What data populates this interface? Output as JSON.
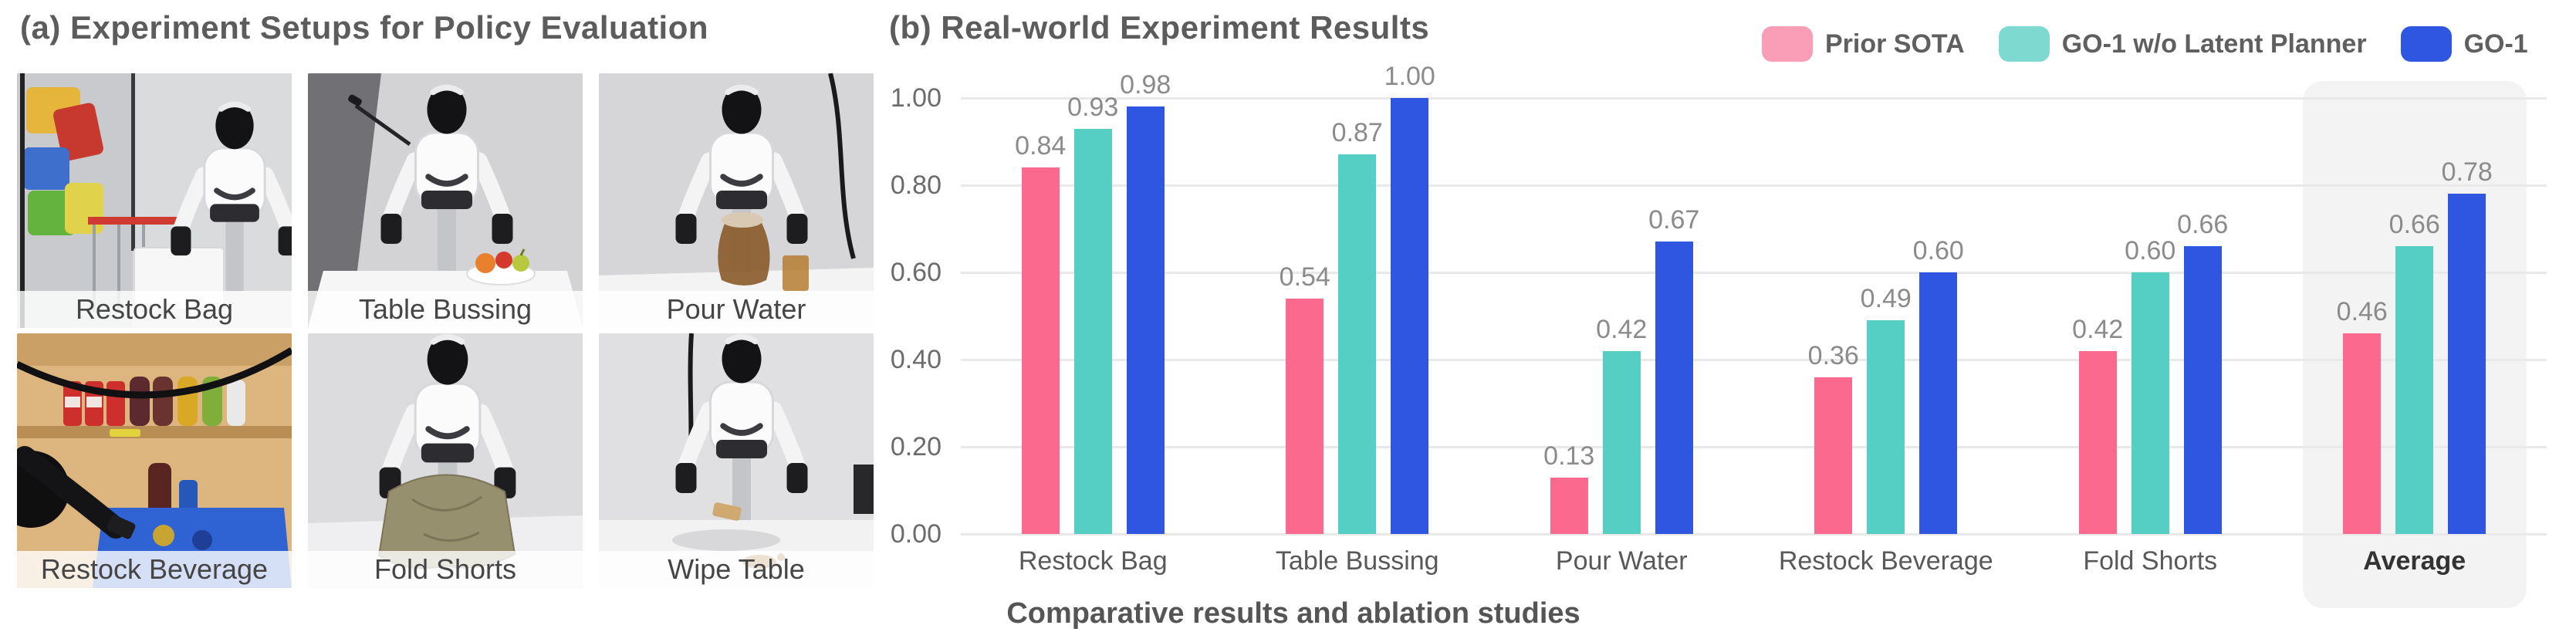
{
  "panel_a": {
    "title": "(a) Experiment Setups for Policy Evaluation",
    "tiles": [
      {
        "label": "Restock Bag"
      },
      {
        "label": "Table Bussing"
      },
      {
        "label": "Pour Water"
      },
      {
        "label": "Restock Beverage"
      },
      {
        "label": "Fold Shorts"
      },
      {
        "label": "Wipe Table"
      }
    ]
  },
  "panel_b": {
    "title": "(b) Real-world Experiment Results",
    "caption": "Comparative results and ablation studies"
  },
  "chart_data": {
    "type": "bar",
    "title": "(b) Real-world Experiment Results",
    "categories": [
      "Restock Bag",
      "Table Bussing",
      "Pour Water",
      "Restock Beverage",
      "Fold Shorts",
      "Average"
    ],
    "series": [
      {
        "name": "Prior SOTA",
        "bar_color": "#FB6A8E",
        "legend_color": "#FA9EB8",
        "values": [
          0.84,
          0.54,
          0.13,
          0.36,
          0.42,
          0.46
        ]
      },
      {
        "name": "GO-1 w/o Latent Planner",
        "bar_color": "#55CFC3",
        "legend_color": "#7EDAD0",
        "values": [
          0.93,
          0.87,
          0.42,
          0.49,
          0.6,
          0.66
        ]
      },
      {
        "name": "GO-1",
        "bar_color": "#2F56E0",
        "legend_color": "#2F56E0",
        "values": [
          0.98,
          1.0,
          0.67,
          0.6,
          0.66,
          0.78
        ]
      }
    ],
    "ylim": [
      0,
      1.0
    ],
    "yticks": [
      "0.00",
      "0.20",
      "0.40",
      "0.60",
      "0.80",
      "1.00"
    ],
    "value_label_decimals": 2,
    "grid": true,
    "legend_position": "top-right",
    "highlight_category": "Average",
    "xlabel": "",
    "ylabel": "",
    "colors": {
      "grid_line": "#e9e9e9",
      "tick_label": "#6b6b6b",
      "value_label": "#8b8b8b",
      "category_label": "#595959",
      "highlight_bg": "#f3f3f4"
    }
  }
}
